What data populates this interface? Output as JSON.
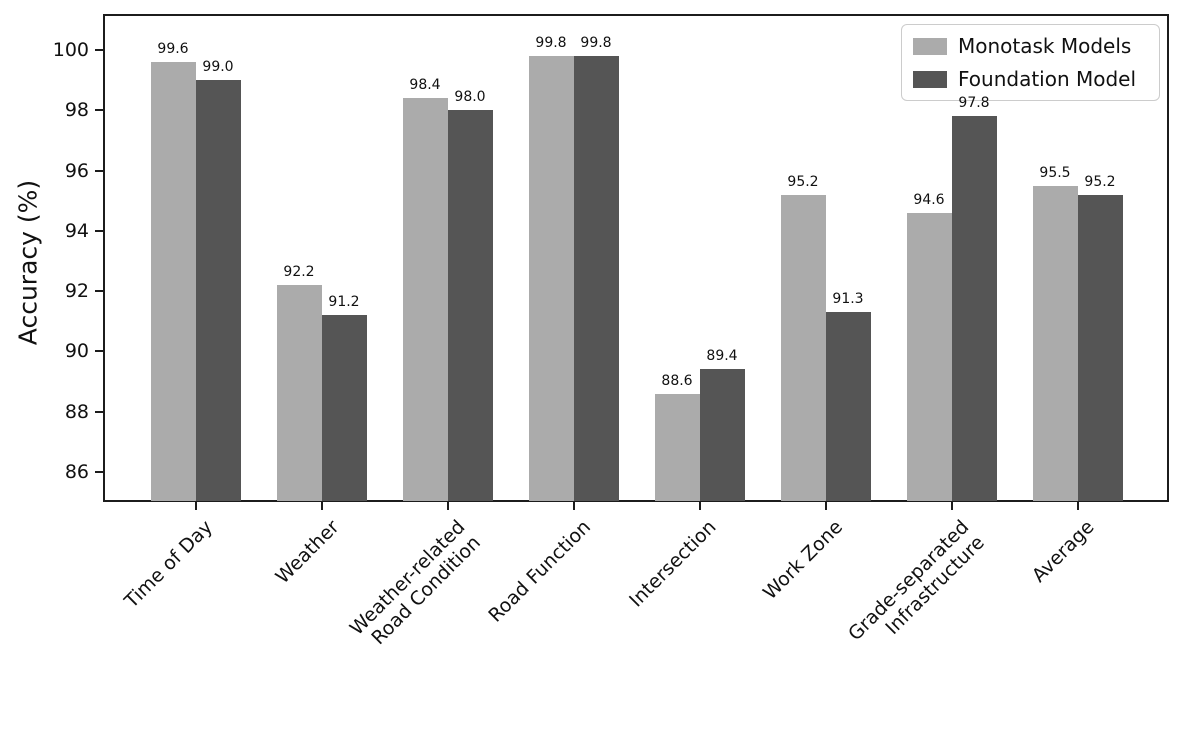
{
  "chart_data": {
    "type": "bar",
    "title": "",
    "xlabel": "",
    "ylabel": "Accuracy (%)",
    "categories": [
      "Time of Day",
      "Weather",
      "Weather-related\nRoad Condition",
      "Road Function",
      "Intersection",
      "Work Zone",
      "Grade-separated\nInfrastructure",
      "Average"
    ],
    "series": [
      {
        "name": "Monotask Models",
        "color": "#ababab",
        "values": [
          99.6,
          92.2,
          98.4,
          99.8,
          88.6,
          95.2,
          94.6,
          95.5
        ]
      },
      {
        "name": "Foundation Model",
        "color": "#555555",
        "values": [
          99.0,
          91.2,
          98.0,
          99.8,
          89.4,
          91.3,
          97.8,
          95.2
        ]
      }
    ],
    "bar_value_labels": [
      [
        "99.6",
        "92.2",
        "98.4",
        "99.8",
        "88.6",
        "95.2",
        "94.6",
        "95.5"
      ],
      [
        "99.0",
        "91.2",
        "98.0",
        "99.8",
        "89.4",
        "91.3",
        "97.8",
        "95.2"
      ]
    ],
    "yticks": [
      "86",
      "88",
      "90",
      "92",
      "94",
      "96",
      "98",
      "100"
    ],
    "ylim": [
      85,
      101.2
    ],
    "grid": false,
    "legend_position": "upper right",
    "x_tick_rotation_deg": 45
  }
}
